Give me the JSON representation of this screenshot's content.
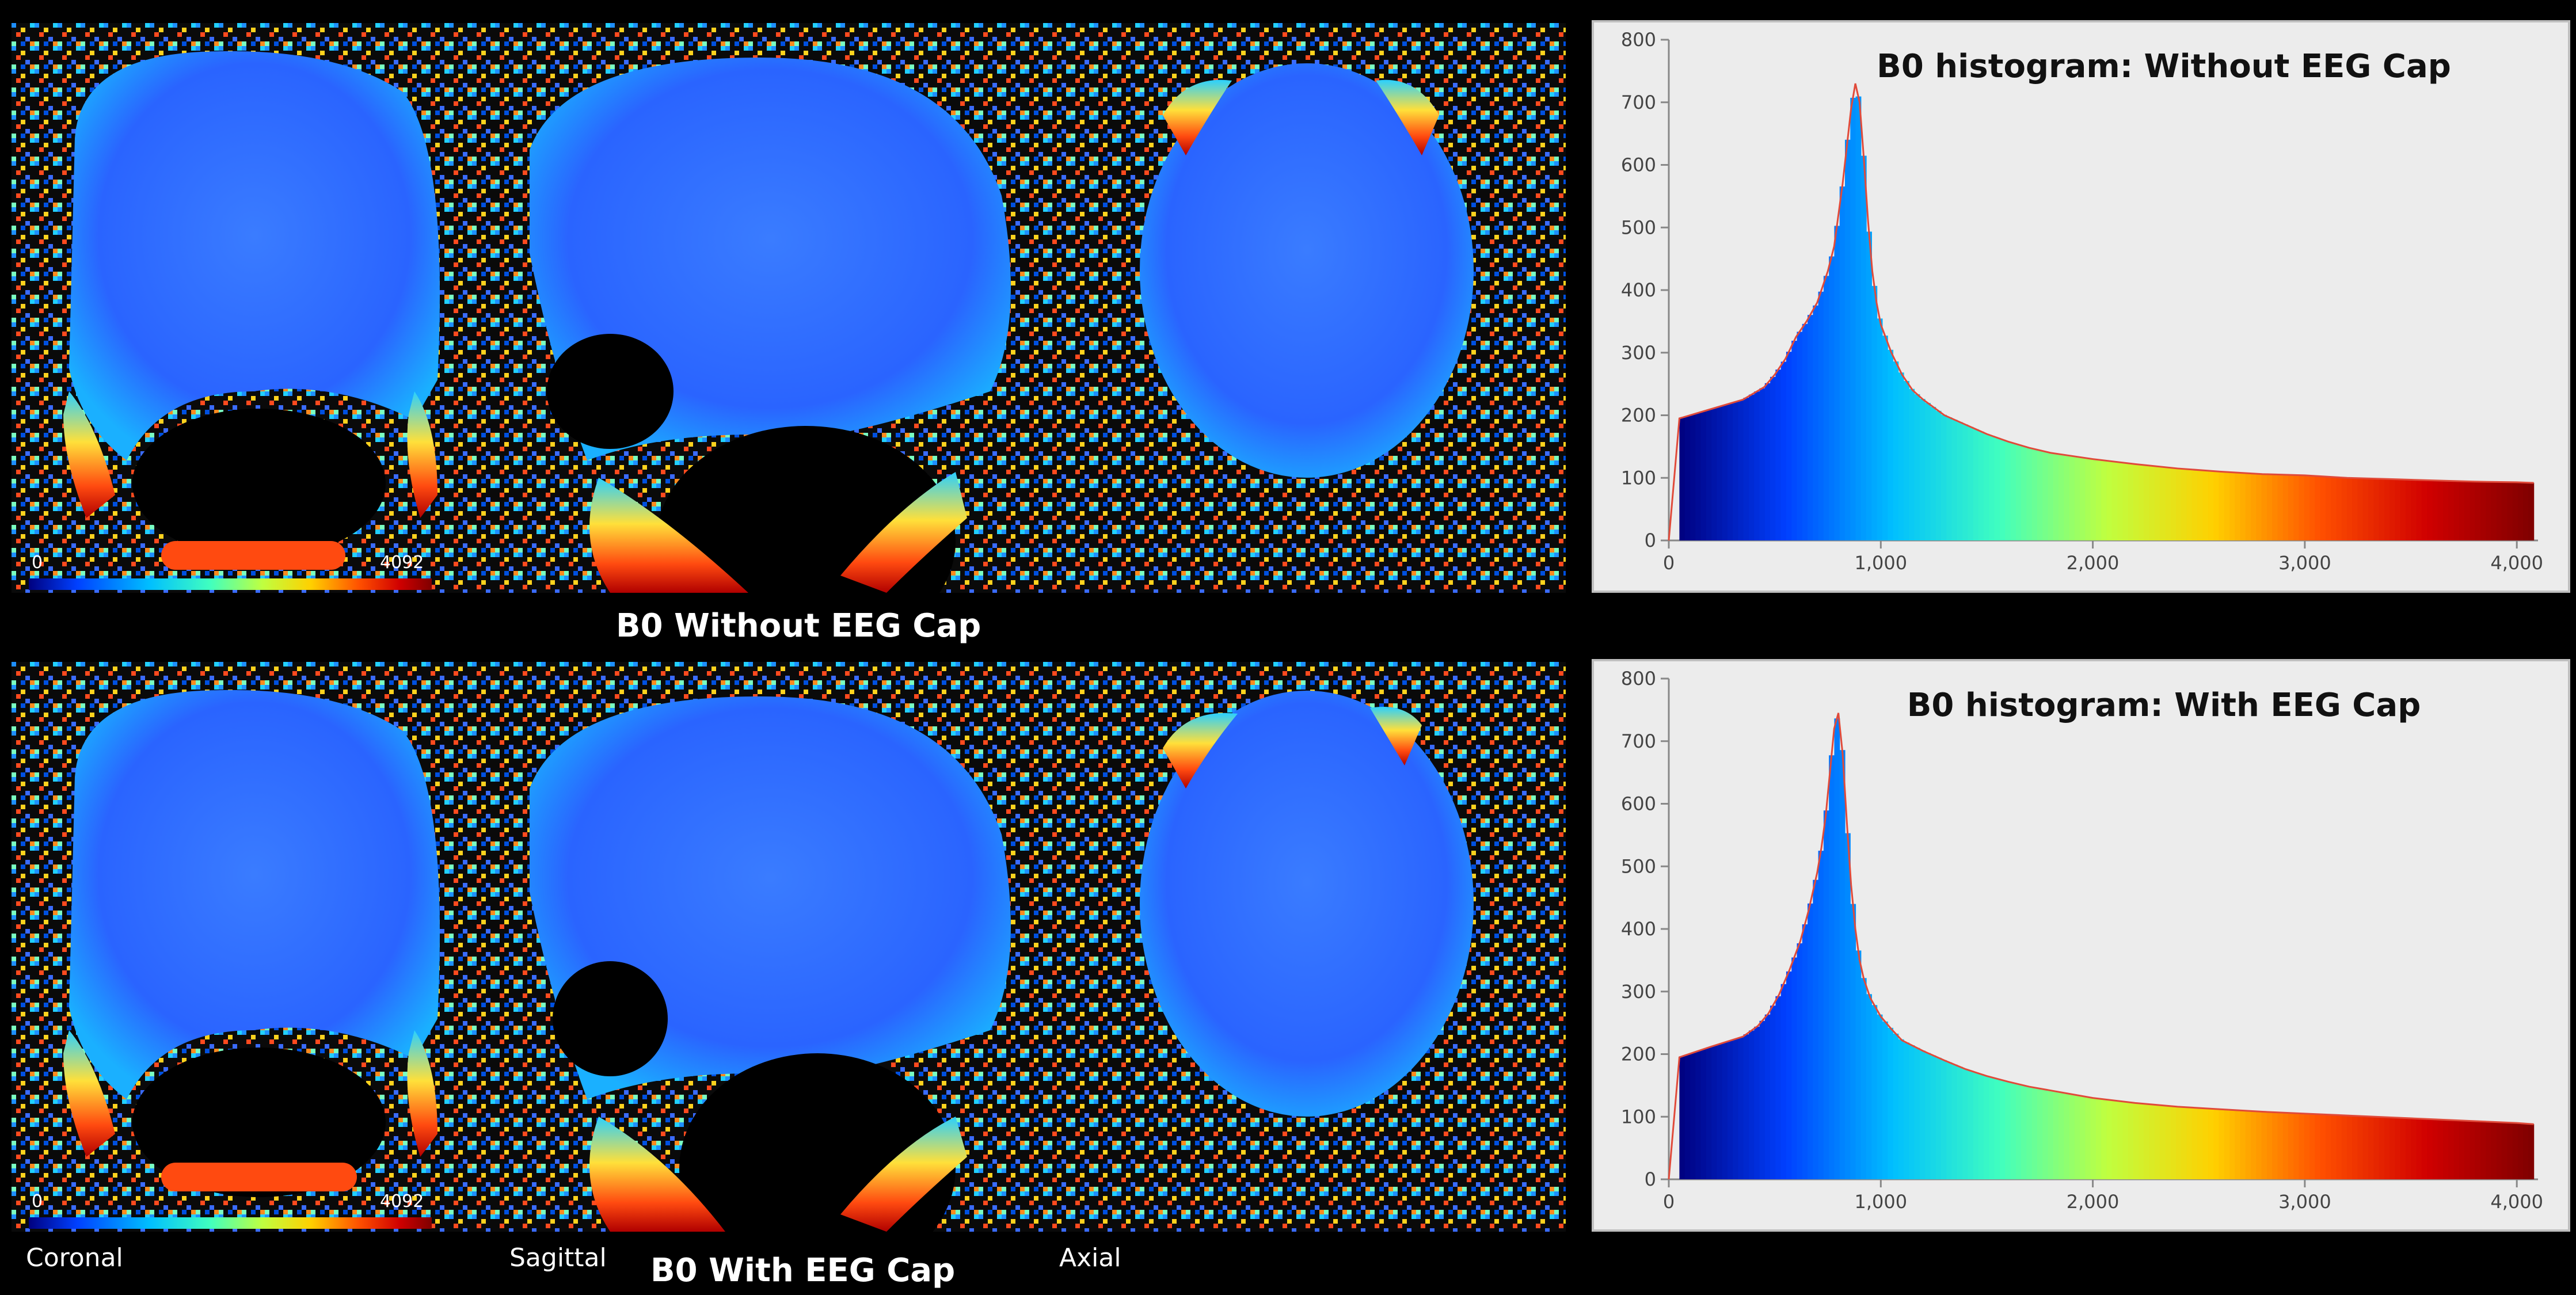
{
  "labels": {
    "caption_top": "B0 Without EEG Cap",
    "caption_bottom": "B0 With EEG Cap",
    "view_coronal": "Coronal",
    "view_sagittal": "Sagittal",
    "view_axial": "Axial",
    "colorbar_min_top": "0",
    "colorbar_max_top": "4092",
    "colorbar_min_bottom": "0",
    "colorbar_max_bottom": "4092"
  },
  "colors": {
    "background": "#000000",
    "panel_bg": "#ececec",
    "curve": "#e04a3a",
    "colormap": [
      "#00007f",
      "#0040ff",
      "#00bfff",
      "#40ffbf",
      "#bfff40",
      "#ffd000",
      "#ff5000",
      "#d00000",
      "#7f0000"
    ]
  },
  "chart_data": [
    {
      "type": "bar",
      "title": "B0 histogram: Without EEG Cap",
      "xlabel": "",
      "ylabel": "",
      "xlim": [
        0,
        4100
      ],
      "ylim": [
        0,
        800
      ],
      "xticks": [
        0,
        1000,
        2000,
        3000,
        4000
      ],
      "xtick_labels": [
        "0",
        "1,000",
        "2,000",
        "3,000",
        "4,000"
      ],
      "yticks": [
        0,
        100,
        200,
        300,
        400,
        500,
        600,
        700,
        800
      ],
      "ytick_labels": [
        "0",
        "100",
        "200",
        "300",
        "400",
        "500",
        "600",
        "700",
        "800"
      ],
      "grid": false,
      "legend": "none",
      "x": [
        50,
        200,
        350,
        450,
        500,
        550,
        600,
        650,
        700,
        750,
        780,
        800,
        820,
        840,
        860,
        880,
        900,
        920,
        940,
        960,
        980,
        1000,
        1050,
        1100,
        1150,
        1200,
        1300,
        1400,
        1500,
        1600,
        1700,
        1800,
        1900,
        2000,
        2200,
        2400,
        2600,
        2800,
        3000,
        3200,
        3400,
        3600,
        3800,
        4000,
        4080
      ],
      "values": [
        195,
        210,
        225,
        245,
        265,
        290,
        325,
        350,
        380,
        430,
        470,
        520,
        570,
        630,
        690,
        730,
        700,
        610,
        510,
        430,
        380,
        345,
        300,
        265,
        240,
        225,
        200,
        185,
        170,
        158,
        148,
        140,
        135,
        130,
        122,
        115,
        110,
        106,
        104,
        100,
        98,
        96,
        94,
        93,
        92
      ]
    },
    {
      "type": "bar",
      "title": "B0 histogram: With EEG Cap",
      "xlabel": "",
      "ylabel": "",
      "xlim": [
        0,
        4100
      ],
      "ylim": [
        0,
        800
      ],
      "xticks": [
        0,
        1000,
        2000,
        3000,
        4000
      ],
      "xtick_labels": [
        "0",
        "1,000",
        "2,000",
        "3,000",
        "4,000"
      ],
      "yticks": [
        0,
        100,
        200,
        300,
        400,
        500,
        600,
        700,
        800
      ],
      "ytick_labels": [
        "0",
        "100",
        "200",
        "300",
        "400",
        "500",
        "600",
        "700",
        "800"
      ],
      "grid": false,
      "legend": "none",
      "x": [
        50,
        200,
        350,
        420,
        470,
        520,
        570,
        620,
        660,
        700,
        720,
        740,
        760,
        780,
        800,
        820,
        840,
        860,
        880,
        900,
        920,
        950,
        1000,
        1050,
        1100,
        1200,
        1300,
        1400,
        1500,
        1600,
        1700,
        1800,
        1900,
        2000,
        2200,
        2400,
        2600,
        2800,
        3000,
        3200,
        3400,
        3600,
        3800,
        4000,
        4080
      ],
      "values": [
        195,
        212,
        228,
        245,
        265,
        295,
        335,
        380,
        430,
        490,
        530,
        580,
        650,
        720,
        745,
        680,
        570,
        470,
        400,
        350,
        320,
        290,
        260,
        240,
        222,
        205,
        190,
        176,
        165,
        156,
        148,
        142,
        136,
        130,
        122,
        116,
        112,
        108,
        105,
        102,
        99,
        96,
        93,
        90,
        88
      ]
    }
  ]
}
